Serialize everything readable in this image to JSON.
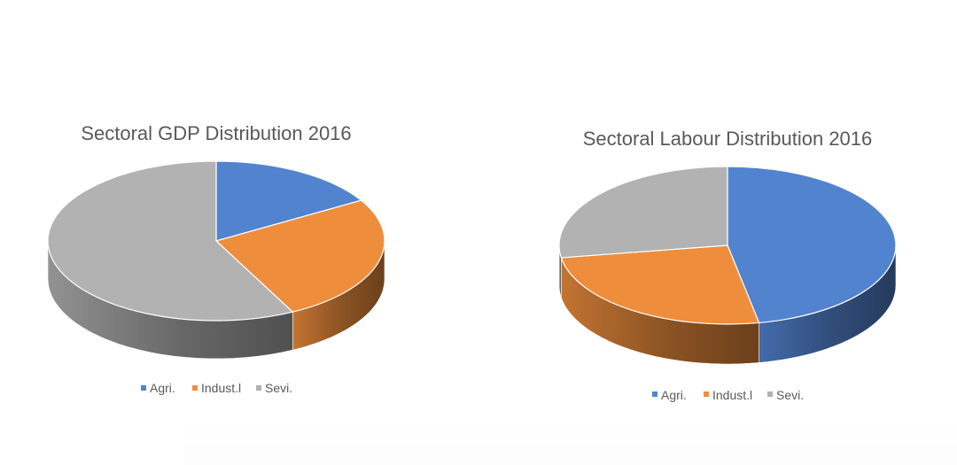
{
  "chart_data": [
    {
      "type": "pie",
      "title": "Sectoral GDP Distribution 2016",
      "categories": [
        "Agri.",
        "Indust.l",
        "Sevi."
      ],
      "values": [
        16.5,
        26.0,
        57.5
      ],
      "colors": [
        "#5283cf",
        "#ee8e3d",
        "#b2b2b2"
      ],
      "legend_position": "bottom",
      "grid": false,
      "style": "3d"
    },
    {
      "type": "pie",
      "title": "Sectoral Labour Distribution 2016",
      "categories": [
        "Agri.",
        "Indust.l",
        "Sevi."
      ],
      "values": [
        47.0,
        25.5,
        27.5
      ],
      "colors": [
        "#5283cf",
        "#ee8e3d",
        "#b2b2b2"
      ],
      "legend_position": "bottom",
      "grid": false,
      "style": "3d"
    }
  ]
}
